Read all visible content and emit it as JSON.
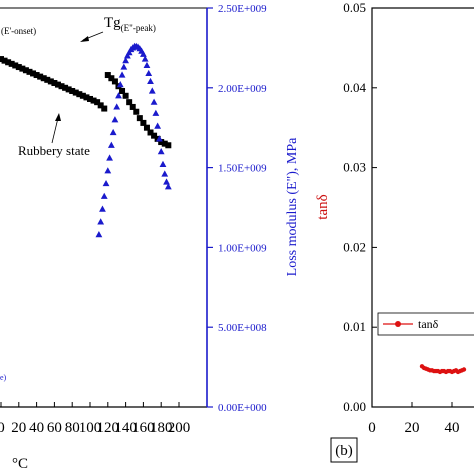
{
  "chart_data": [
    {
      "panel": "a",
      "type": "scatter",
      "x_tick_labels": [
        "0",
        "20",
        "40",
        "60",
        "80",
        "100",
        "120",
        "140",
        "160",
        "180",
        "200"
      ],
      "xlabel_visible_fragment": "°C",
      "right_axis": {
        "label": "Loss modulus (E\"), MPa",
        "tick_labels": [
          "0.00E+000",
          "5.00E+008",
          "1.00E+009",
          "1.50E+009",
          "2.00E+009",
          "2.50E+009"
        ],
        "ylim": [
          0,
          2500000000
        ],
        "color": "#1a1acc"
      },
      "annotations": {
        "tg_peak": "Tg",
        "tg_peak_sub": "(E\"-peak)",
        "tg_onset_fragment": "(E'-onset)",
        "rubbery_state": "Rubbery state",
        "bottom_fragment": "e)"
      },
      "series": [
        {
          "marker": "square",
          "color": "#000000",
          "x": [
            0,
            4,
            8,
            12,
            16,
            20,
            24,
            28,
            32,
            36,
            40,
            44,
            48,
            52,
            56,
            60,
            64,
            68,
            72,
            76,
            80,
            84,
            88,
            92,
            96,
            100,
            104,
            108,
            112,
            116,
            120,
            124,
            128,
            132,
            136,
            140,
            144,
            148,
            152,
            156,
            160,
            164,
            168,
            172,
            176,
            180,
            184,
            188
          ],
          "y": [
            2180000000,
            2170000000,
            2160000000,
            2150000000,
            2140000000,
            2130000000,
            2120000000,
            2110000000,
            2100000000,
            2090000000,
            2080000000,
            2070000000,
            2060000000,
            2050000000,
            2040000000,
            2030000000,
            2020000000,
            2010000000,
            2000000000,
            1990000000,
            1980000000,
            1970000000,
            1960000000,
            1950000000,
            1940000000,
            1930000000,
            1920000000,
            1910000000,
            1890000000,
            1870000000,
            2080000000,
            2060000000,
            2040000000,
            2010000000,
            1980000000,
            1950000000,
            1910000000,
            1880000000,
            1850000000,
            1810000000,
            1780000000,
            1750000000,
            1720000000,
            1700000000,
            1680000000,
            1660000000,
            1650000000,
            1640000000
          ]
        },
        {
          "marker": "triangle",
          "color": "#1a1acc",
          "x": [
            110,
            112,
            114,
            116,
            118,
            120,
            122,
            124,
            126,
            128,
            130,
            132,
            134,
            136,
            138,
            140,
            142,
            144,
            146,
            148,
            150,
            152,
            154,
            156,
            158,
            160,
            162,
            164,
            166,
            168,
            170,
            172,
            174,
            176,
            178,
            180,
            182,
            184,
            186,
            188
          ],
          "y": [
            1080000000,
            1160000000,
            1240000000,
            1320000000,
            1400000000,
            1480000000,
            1560000000,
            1640000000,
            1720000000,
            1800000000,
            1880000000,
            1950000000,
            2020000000,
            2080000000,
            2130000000,
            2170000000,
            2200000000,
            2220000000,
            2240000000,
            2250000000,
            2260000000,
            2260000000,
            2255000000,
            2245000000,
            2230000000,
            2210000000,
            2180000000,
            2140000000,
            2090000000,
            2040000000,
            1980000000,
            1910000000,
            1840000000,
            1760000000,
            1680000000,
            1600000000,
            1520000000,
            1460000000,
            1410000000,
            1380000000
          ]
        }
      ]
    },
    {
      "panel": "b",
      "panel_label": "(b)",
      "type": "scatter",
      "ylabel": "tanδ",
      "ylabel_color": "#cc1111",
      "x_tick_labels": [
        "0",
        "20",
        "40"
      ],
      "y_tick_labels": [
        "0.00",
        "0.01",
        "0.02",
        "0.03",
        "0.04",
        "0.05"
      ],
      "ylim": [
        0,
        0.05
      ],
      "legend": {
        "label": "tanδ",
        "placement": "center-right"
      },
      "series": [
        {
          "name": "tanδ",
          "marker": "circle",
          "color": "#dd1111",
          "x": [
            25,
            26,
            27,
            28,
            29,
            30,
            31,
            32,
            33,
            34,
            35,
            36,
            37,
            38,
            39,
            40,
            41,
            42,
            43,
            44,
            45,
            46
          ],
          "y": [
            0.0051,
            0.0049,
            0.0048,
            0.0047,
            0.0046,
            0.0046,
            0.0045,
            0.0045,
            0.0045,
            0.0044,
            0.0045,
            0.0045,
            0.0044,
            0.0045,
            0.0045,
            0.0044,
            0.0045,
            0.0046,
            0.0044,
            0.0045,
            0.0046,
            0.0047
          ]
        }
      ]
    }
  ]
}
